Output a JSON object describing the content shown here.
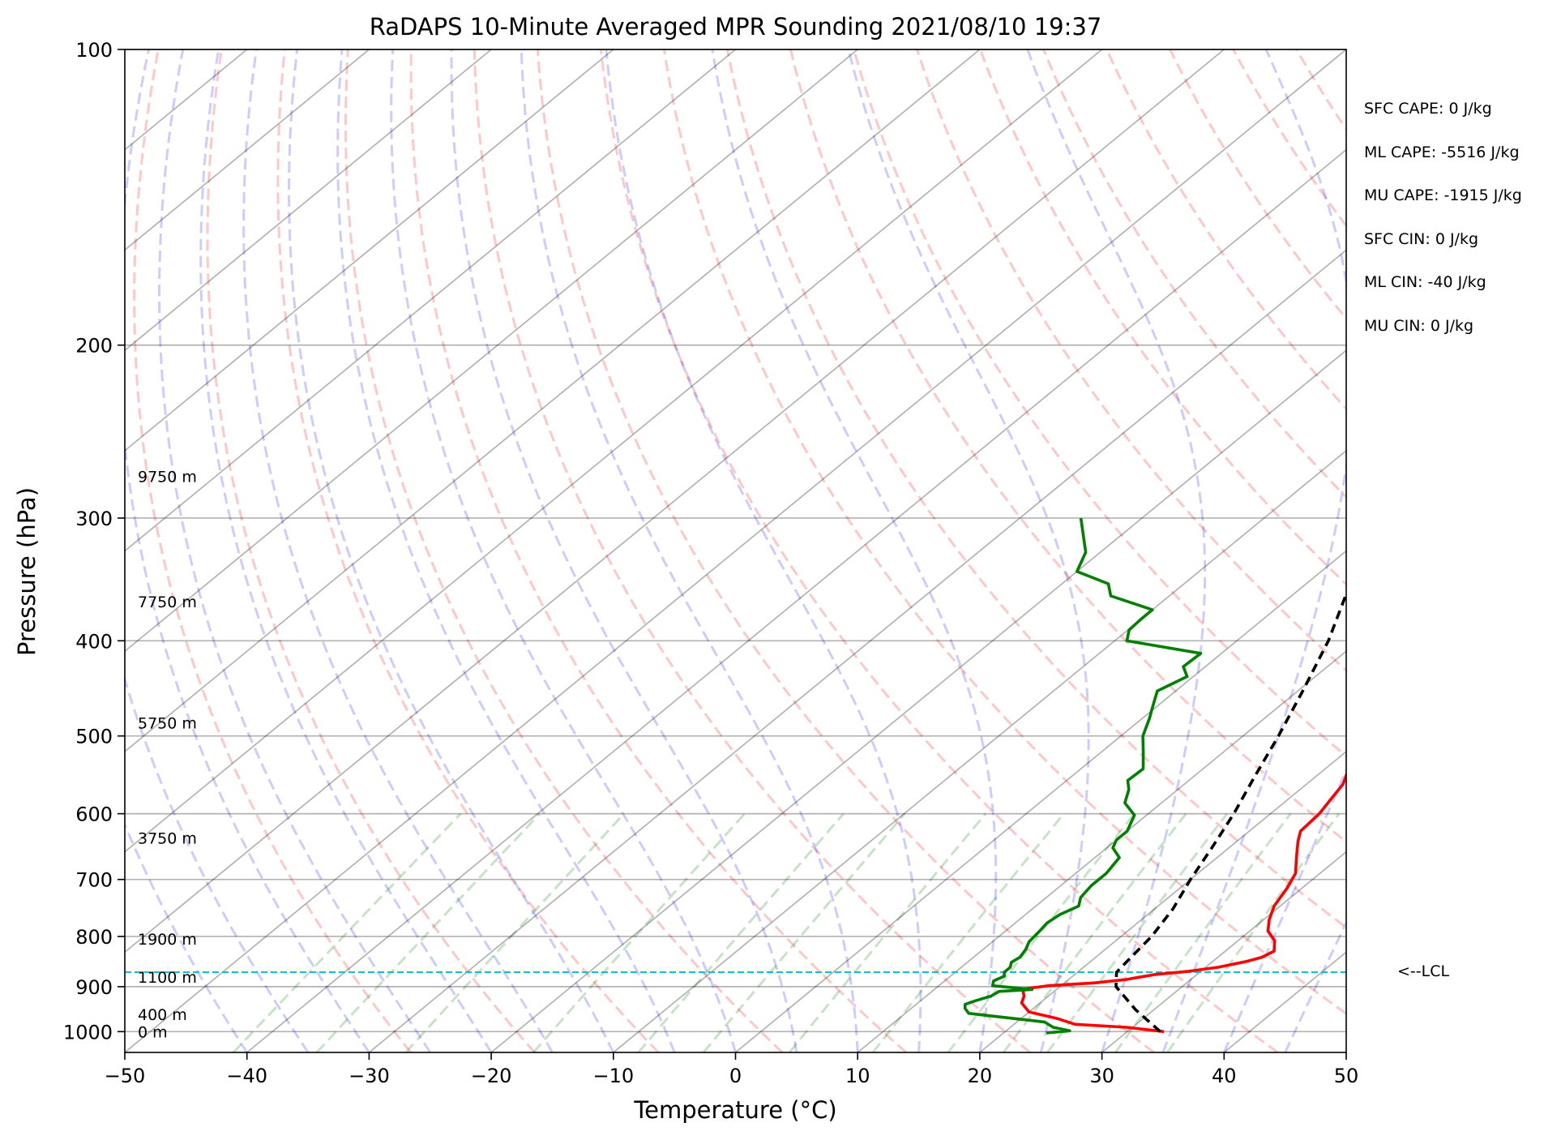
{
  "chart_data": {
    "type": "skew-t log-p sounding",
    "title": "RaDAPS 10-Minute Averaged MPR Sounding 2021/08/10 19:37",
    "xlabel": "Temperature (°C)",
    "ylabel": "Pressure (hPa)",
    "xlim": [
      -50,
      50
    ],
    "ylim_hpa": [
      1050,
      100
    ],
    "y_scale": "log",
    "x_ticks": [
      -50,
      -40,
      -30,
      -20,
      -10,
      0,
      10,
      20,
      30,
      40,
      50
    ],
    "x_tick_labels": [
      "−50",
      "−40",
      "−30",
      "−20",
      "−10",
      "0",
      "10",
      "20",
      "30",
      "40",
      "50"
    ],
    "y_ticks": [
      1000,
      900,
      800,
      700,
      600,
      500,
      400,
      300,
      200,
      100
    ],
    "y_tick_labels": [
      "1000",
      "900",
      "800",
      "700",
      "600",
      "500",
      "400",
      "300",
      "200",
      "100"
    ],
    "skew_isotherms": true,
    "dry_adiabats": true,
    "moist_adiabats": true,
    "mixing_ratio_lines": true,
    "height_labels": [
      {
        "pressure": 1000,
        "label": "0 m"
      },
      {
        "pressure": 960,
        "label": "400 m"
      },
      {
        "pressure": 880,
        "label": "1100 m"
      },
      {
        "pressure": 805,
        "label": "1900 m"
      },
      {
        "pressure": 635,
        "label": "3750 m"
      },
      {
        "pressure": 485,
        "label": "5750 m"
      },
      {
        "pressure": 365,
        "label": "7750 m"
      },
      {
        "pressure": 272,
        "label": "9750 m"
      }
    ],
    "series": [
      {
        "color": "#ff0000",
        "line_style": "solid",
        "points": [
          [
            1000,
            33.0
          ],
          [
            990,
            29.5
          ],
          [
            983,
            25.0
          ],
          [
            970,
            23.0
          ],
          [
            955,
            20.0
          ],
          [
            935,
            18.5
          ],
          [
            920,
            18.0
          ],
          [
            905,
            17.2
          ],
          [
            898,
            19.0
          ],
          [
            892,
            22.5
          ],
          [
            885,
            24.7
          ],
          [
            875,
            26.5
          ],
          [
            868,
            29.0
          ],
          [
            860,
            31.0
          ],
          [
            848,
            32.8
          ],
          [
            840,
            33.6
          ],
          [
            828,
            34.0
          ],
          [
            818,
            33.5
          ],
          [
            808,
            33.0
          ],
          [
            790,
            31.5
          ],
          [
            770,
            30.5
          ],
          [
            745,
            29.5
          ],
          [
            715,
            28.8
          ],
          [
            690,
            28.0
          ],
          [
            665,
            26.5
          ],
          [
            640,
            25.0
          ],
          [
            625,
            24.2
          ],
          [
            600,
            24.0
          ],
          [
            580,
            23.5
          ],
          [
            560,
            23.0
          ],
          [
            545,
            22.2
          ],
          [
            520,
            21.5
          ],
          [
            500,
            20.8
          ],
          [
            480,
            20.4
          ],
          [
            460,
            19.8
          ],
          [
            445,
            19.0
          ],
          [
            430,
            18.7
          ],
          [
            410,
            18.0
          ],
          [
            395,
            17.2
          ],
          [
            380,
            16.4
          ],
          [
            365,
            15.8
          ],
          [
            350,
            15.3
          ],
          [
            335,
            14.4
          ],
          [
            320,
            13.8
          ],
          [
            310,
            13.1
          ],
          [
            300,
            12.8
          ]
        ]
      },
      {
        "color": "#008000",
        "line_style": "solid",
        "points": [
          [
            1003,
            23.5
          ],
          [
            998,
            25.2
          ],
          [
            990,
            23.5
          ],
          [
            978,
            22.3
          ],
          [
            970,
            19.5
          ],
          [
            958,
            15.2
          ],
          [
            947,
            14.4
          ],
          [
            938,
            14.0
          ],
          [
            930,
            14.5
          ],
          [
            920,
            15.3
          ],
          [
            910,
            15.5
          ],
          [
            906,
            18.0
          ],
          [
            898,
            14.4
          ],
          [
            888,
            14.0
          ],
          [
            878,
            14.4
          ],
          [
            870,
            14.0
          ],
          [
            860,
            14.0
          ],
          [
            850,
            13.6
          ],
          [
            840,
            13.8
          ],
          [
            825,
            13.5
          ],
          [
            810,
            13.0
          ],
          [
            790,
            12.8
          ],
          [
            775,
            12.6
          ],
          [
            760,
            12.8
          ],
          [
            745,
            13.5
          ],
          [
            730,
            12.8
          ],
          [
            710,
            12.5
          ],
          [
            690,
            12.5
          ],
          [
            665,
            12.0
          ],
          [
            650,
            10.5
          ],
          [
            638,
            10.0
          ],
          [
            625,
            10.0
          ],
          [
            602,
            9.0
          ],
          [
            585,
            7.0
          ],
          [
            567,
            6.0
          ],
          [
            555,
            5.0
          ],
          [
            540,
            5.1
          ],
          [
            520,
            3.5
          ],
          [
            500,
            1.8
          ],
          [
            480,
            0.6
          ],
          [
            470,
            -0.1
          ],
          [
            450,
            -1.5
          ],
          [
            435,
            -0.5
          ],
          [
            425,
            -1.8
          ],
          [
            412,
            -1.7
          ],
          [
            400,
            -9.0
          ],
          [
            390,
            -9.9
          ],
          [
            380,
            -10.0
          ],
          [
            372,
            -10.0
          ],
          [
            360,
            -14.8
          ],
          [
            350,
            -16.2
          ],
          [
            340,
            -20.0
          ],
          [
            325,
            -21.2
          ],
          [
            300,
            -25.0
          ]
        ]
      },
      {
        "color": "#000000",
        "line_style": "dashed",
        "points": [
          [
            1000,
            32.7
          ],
          [
            950,
            28.5
          ],
          [
            900,
            24.6
          ],
          [
            870,
            23.2
          ],
          [
            850,
            23.0
          ],
          [
            800,
            22.5
          ],
          [
            750,
            21.5
          ],
          [
            700,
            20.0
          ],
          [
            650,
            18.6
          ],
          [
            600,
            17.0
          ],
          [
            550,
            15.0
          ],
          [
            500,
            12.9
          ],
          [
            450,
            10.4
          ],
          [
            400,
            7.5
          ],
          [
            350,
            3.6
          ],
          [
            320,
            1.0
          ],
          [
            300,
            -1.2
          ]
        ]
      }
    ],
    "lcl": {
      "pressure": 870,
      "label": "<--LCL"
    },
    "stats": [
      "SFC CAPE: 0 J/kg",
      "ML CAPE: -5516 J/kg",
      "MU CAPE: -1915 J/kg",
      "SFC CIN: 0 J/kg",
      "ML CIN: -40 J/kg",
      "MU CIN: 0 J/kg"
    ]
  }
}
